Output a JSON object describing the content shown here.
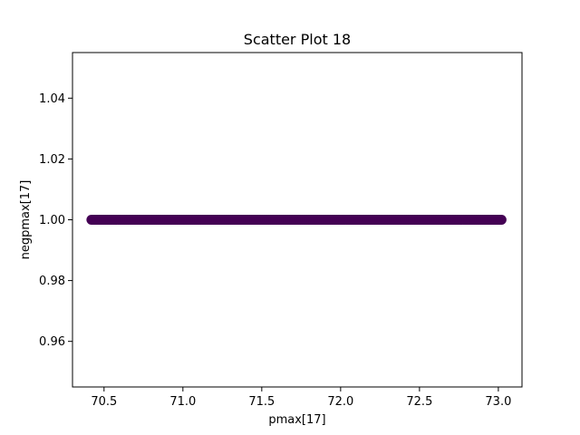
{
  "chart_data": {
    "type": "scatter",
    "title": "Scatter Plot 18",
    "xlabel": "pmax[17]",
    "ylabel": "negpmax[17]",
    "xlim": [
      70.3,
      73.15
    ],
    "ylim": [
      0.945,
      1.055
    ],
    "x_ticks": [
      70.5,
      71.0,
      71.5,
      72.0,
      72.5,
      73.0
    ],
    "x_tick_labels": [
      "70.5",
      "71.0",
      "71.5",
      "72.0",
      "72.5",
      "73.0"
    ],
    "y_ticks": [
      0.96,
      0.98,
      1.0,
      1.02,
      1.04
    ],
    "y_tick_labels": [
      "0.96",
      "0.98",
      "1.00",
      "1.02",
      "1.04"
    ],
    "grid": false,
    "marker_color": "#440154",
    "series": [
      {
        "x_range": [
          70.42,
          73.02
        ],
        "y": 1.0
      }
    ]
  }
}
